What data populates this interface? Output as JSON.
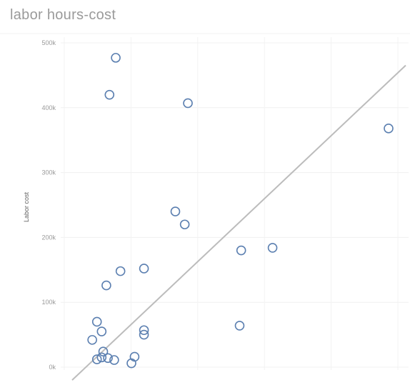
{
  "chart_data": {
    "type": "scatter",
    "title": "labor hours-cost",
    "xlabel": "",
    "ylabel": "Labor cost",
    "ylim": [
      0,
      500000
    ],
    "xlim": [
      0,
      100
    ],
    "y_ticks": [
      {
        "value": 0,
        "label": "0k"
      },
      {
        "value": 100000,
        "label": "100k"
      },
      {
        "value": 200000,
        "label": "200k"
      },
      {
        "value": 300000,
        "label": "300k"
      },
      {
        "value": 400000,
        "label": "400k"
      },
      {
        "value": 500000,
        "label": "500k"
      }
    ],
    "grid": true,
    "marker": "open-circle",
    "marker_color": "#5b7fb0",
    "trendline": {
      "x": [
        0,
        100
      ],
      "y": [
        -20000,
        462000
      ],
      "color": "#bcbcbc"
    },
    "points": [
      {
        "x": 13.0,
        "y": 477000
      },
      {
        "x": 11.0,
        "y": 420000
      },
      {
        "x": 36.0,
        "y": 407000
      },
      {
        "x": 100.0,
        "y": 368000
      },
      {
        "x": 32.0,
        "y": 240000
      },
      {
        "x": 35.0,
        "y": 220000
      },
      {
        "x": 53.0,
        "y": 180000
      },
      {
        "x": 63.0,
        "y": 184000
      },
      {
        "x": 22.0,
        "y": 152000
      },
      {
        "x": 14.5,
        "y": 148000
      },
      {
        "x": 10.0,
        "y": 126000
      },
      {
        "x": 7.0,
        "y": 70000
      },
      {
        "x": 8.5,
        "y": 55000
      },
      {
        "x": 22.0,
        "y": 57000
      },
      {
        "x": 22.0,
        "y": 50000
      },
      {
        "x": 52.5,
        "y": 64000
      },
      {
        "x": 5.5,
        "y": 42000
      },
      {
        "x": 9.0,
        "y": 24000
      },
      {
        "x": 7.0,
        "y": 12000
      },
      {
        "x": 8.5,
        "y": 15000
      },
      {
        "x": 10.5,
        "y": 14000
      },
      {
        "x": 12.5,
        "y": 11000
      },
      {
        "x": 19.0,
        "y": 16000
      },
      {
        "x": 18.0,
        "y": 6000
      }
    ]
  }
}
